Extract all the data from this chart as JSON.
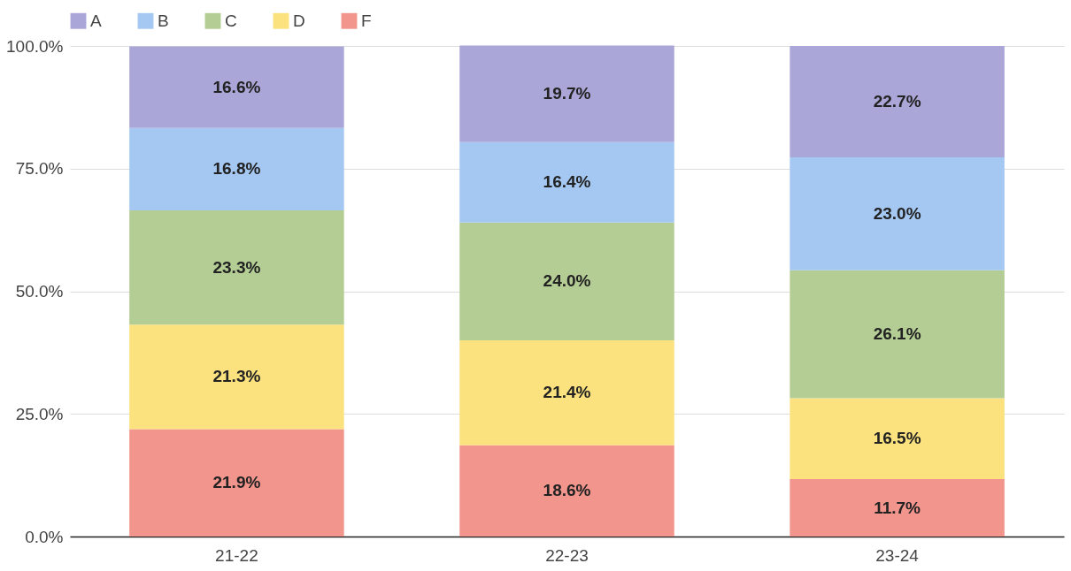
{
  "chart_data": {
    "type": "bar",
    "stacked": true,
    "categories": [
      "21-22",
      "22-23",
      "23-24"
    ],
    "series": [
      {
        "name": "F",
        "color": "#f2958d",
        "values": [
          21.9,
          18.6,
          11.7
        ],
        "value_labels": [
          "21.9%",
          "18.6%",
          "11.7%"
        ]
      },
      {
        "name": "D",
        "color": "#fbe27f",
        "values": [
          21.3,
          21.4,
          16.5
        ],
        "value_labels": [
          "21.3%",
          "21.4%",
          "16.5%"
        ]
      },
      {
        "name": "C",
        "color": "#b3cd94",
        "values": [
          23.3,
          24.0,
          26.1
        ],
        "value_labels": [
          "23.3%",
          "24.0%",
          "26.1%"
        ]
      },
      {
        "name": "B",
        "color": "#a4c8f2",
        "values": [
          16.8,
          16.4,
          23.0
        ],
        "value_labels": [
          "16.8%",
          "16.4%",
          "23.0%"
        ]
      },
      {
        "name": "A",
        "color": "#aaa7d8",
        "values": [
          16.6,
          19.7,
          22.7
        ],
        "value_labels": [
          "16.6%",
          "19.7%",
          "22.7%"
        ]
      }
    ],
    "ylim": [
      0,
      100
    ],
    "yticks": [
      {
        "value": 0,
        "label": "0.0%"
      },
      {
        "value": 25,
        "label": "25.0%"
      },
      {
        "value": 50,
        "label": "50.0%"
      },
      {
        "value": 75,
        "label": "75.0%"
      },
      {
        "value": 100,
        "label": "100.0%"
      }
    ],
    "grid": "y",
    "legend": "top"
  }
}
